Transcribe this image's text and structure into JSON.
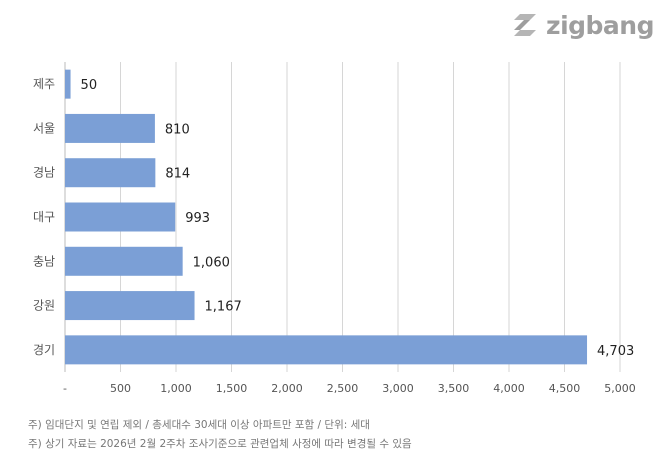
{
  "brand": {
    "name": "zigbang",
    "color": "#9e9e9e"
  },
  "chart_data": {
    "type": "bar",
    "orientation": "horizontal",
    "categories": [
      "제주",
      "서울",
      "경남",
      "대구",
      "충남",
      "강원",
      "경기"
    ],
    "values": [
      50,
      810,
      814,
      993,
      1060,
      1167,
      4703
    ],
    "value_labels": [
      "50",
      "810",
      "814",
      "993",
      "1,060",
      "1,167",
      "4,703"
    ],
    "xlim": [
      0,
      5000
    ],
    "x_ticks": [
      0,
      500,
      1000,
      1500,
      2000,
      2500,
      3000,
      3500,
      4000,
      4500,
      5000
    ],
    "x_tick_labels": [
      "-",
      "500",
      "1,000",
      "1,500",
      "2,000",
      "2,500",
      "3,000",
      "3,500",
      "4,000",
      "4,500",
      "5,000"
    ],
    "grid": true,
    "bar_color": "#7b9fd6",
    "gridline_color": "#d6d6d6"
  },
  "notes": [
    "주) 임대단지 및 연립 제외 / 총세대수 30세대 이상 아파트만 포함 / 단위: 세대",
    "주) 상기 자료는 2026년 2월 2주차 조사기준으로 관련업체 사정에 따라 변경될 수 있음"
  ]
}
